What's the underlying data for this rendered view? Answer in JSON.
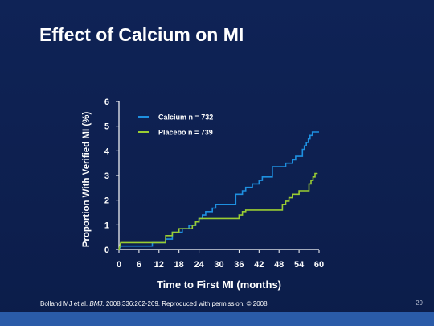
{
  "slide": {
    "title": "Effect of Calcium on MI",
    "footer_authors": "Bolland MJ et al.",
    "footer_journal": "BMJ.",
    "footer_rest": "2008;336:262-269. Reproduced with permission. © 2008.",
    "page_number": "29"
  },
  "colors": {
    "background": "#0d1f4e",
    "calcium": "#1e90e0",
    "placebo": "#9acd32",
    "axis": "#ffffff",
    "bottom_band": "#2a5ba8"
  },
  "chart_data": {
    "type": "line",
    "title": "",
    "xlabel": "Time to First MI (months)",
    "ylabel": "Proportion With Verified MI (%)",
    "xlim": [
      0,
      60
    ],
    "ylim": [
      0,
      6
    ],
    "xticks": [
      0,
      6,
      12,
      18,
      24,
      30,
      36,
      42,
      48,
      54,
      60
    ],
    "yticks": [
      0,
      1,
      2,
      3,
      4,
      5,
      6
    ],
    "grid": false,
    "legend": "top-left",
    "series": [
      {
        "name": "Calcium n = 732",
        "color": "#1e90e0",
        "points": [
          [
            0,
            0
          ],
          [
            0.5,
            0.14
          ],
          [
            10,
            0.14
          ],
          [
            10,
            0.28
          ],
          [
            14,
            0.28
          ],
          [
            14,
            0.42
          ],
          [
            16,
            0.42
          ],
          [
            16,
            0.7
          ],
          [
            19,
            0.7
          ],
          [
            19,
            0.84
          ],
          [
            21,
            0.84
          ],
          [
            21,
            0.98
          ],
          [
            23,
            0.98
          ],
          [
            23,
            1.12
          ],
          [
            24,
            1.12
          ],
          [
            24,
            1.26
          ],
          [
            25,
            1.26
          ],
          [
            25,
            1.4
          ],
          [
            26,
            1.4
          ],
          [
            26,
            1.54
          ],
          [
            28,
            1.54
          ],
          [
            28,
            1.68
          ],
          [
            29,
            1.68
          ],
          [
            29,
            1.82
          ],
          [
            35,
            1.82
          ],
          [
            35,
            2.24
          ],
          [
            37,
            2.24
          ],
          [
            37,
            2.38
          ],
          [
            38,
            2.38
          ],
          [
            38,
            2.52
          ],
          [
            40,
            2.52
          ],
          [
            40,
            2.66
          ],
          [
            42,
            2.66
          ],
          [
            42,
            2.8
          ],
          [
            43,
            2.8
          ],
          [
            43,
            2.94
          ],
          [
            46,
            2.94
          ],
          [
            46,
            3.36
          ],
          [
            50,
            3.36
          ],
          [
            50,
            3.5
          ],
          [
            52,
            3.5
          ],
          [
            52,
            3.64
          ],
          [
            53,
            3.64
          ],
          [
            53,
            3.78
          ],
          [
            55,
            3.78
          ],
          [
            55,
            4.06
          ],
          [
            55.6,
            4.06
          ],
          [
            55.6,
            4.2
          ],
          [
            56.2,
            4.2
          ],
          [
            56.2,
            4.34
          ],
          [
            56.8,
            4.34
          ],
          [
            56.8,
            4.48
          ],
          [
            57.3,
            4.48
          ],
          [
            57.3,
            4.62
          ],
          [
            58,
            4.62
          ],
          [
            58,
            4.76
          ],
          [
            60,
            4.76
          ]
        ]
      },
      {
        "name": "Placebo n = 739",
        "color": "#9acd32",
        "points": [
          [
            0,
            0
          ],
          [
            0.5,
            0.28
          ],
          [
            14,
            0.28
          ],
          [
            14,
            0.56
          ],
          [
            16,
            0.56
          ],
          [
            16,
            0.7
          ],
          [
            18,
            0.7
          ],
          [
            18,
            0.84
          ],
          [
            22,
            0.84
          ],
          [
            22,
            0.98
          ],
          [
            23,
            0.98
          ],
          [
            23,
            1.12
          ],
          [
            24,
            1.12
          ],
          [
            24,
            1.26
          ],
          [
            36,
            1.26
          ],
          [
            36,
            1.4
          ],
          [
            37,
            1.4
          ],
          [
            37,
            1.54
          ],
          [
            38,
            1.54
          ],
          [
            38,
            1.6
          ],
          [
            49,
            1.6
          ],
          [
            49,
            1.82
          ],
          [
            50,
            1.82
          ],
          [
            50,
            1.96
          ],
          [
            51,
            1.96
          ],
          [
            51,
            2.1
          ],
          [
            52,
            2.1
          ],
          [
            52,
            2.24
          ],
          [
            54,
            2.24
          ],
          [
            54,
            2.38
          ],
          [
            57,
            2.38
          ],
          [
            57,
            2.66
          ],
          [
            57.6,
            2.66
          ],
          [
            57.6,
            2.8
          ],
          [
            58.2,
            2.8
          ],
          [
            58.2,
            2.94
          ],
          [
            58.8,
            2.94
          ],
          [
            58.8,
            3.08
          ],
          [
            59.4,
            3.08
          ],
          [
            59.4,
            3.1
          ]
        ]
      }
    ]
  }
}
